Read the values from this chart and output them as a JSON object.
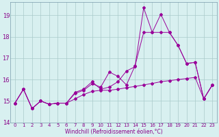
{
  "xlabel": "Windchill (Refroidissement éolien,°C)",
  "bg_color": "#d8f0f0",
  "line_color": "#990099",
  "grid_color": "#aacaca",
  "xlim": [
    -0.5,
    23.5
  ],
  "ylim": [
    14.0,
    19.6
  ],
  "yticks": [
    14,
    15,
    16,
    17,
    18,
    19
  ],
  "xticks": [
    0,
    1,
    2,
    3,
    4,
    5,
    6,
    7,
    8,
    9,
    10,
    11,
    12,
    13,
    14,
    15,
    16,
    17,
    18,
    19,
    20,
    21,
    22,
    23
  ],
  "s1_x": [
    0,
    1,
    2,
    3,
    4,
    5,
    6,
    7,
    8,
    9,
    10,
    11,
    12,
    13,
    14,
    15,
    16,
    17,
    18,
    19,
    20,
    21,
    22,
    23
  ],
  "s1_y": [
    14.9,
    15.55,
    14.65,
    15.0,
    14.85,
    14.9,
    14.9,
    15.4,
    15.55,
    15.9,
    15.55,
    15.65,
    15.9,
    16.4,
    16.6,
    19.35,
    18.2,
    19.05,
    18.2,
    17.6,
    16.75,
    16.8,
    15.1,
    15.75
  ],
  "s2_x": [
    0,
    1,
    2,
    3,
    4,
    5,
    6,
    7,
    8,
    9,
    10,
    11,
    12,
    13,
    14,
    15,
    16,
    17,
    18,
    19,
    20,
    21,
    22,
    23
  ],
  "s2_y": [
    14.9,
    15.55,
    14.65,
    15.0,
    14.85,
    14.9,
    14.9,
    15.35,
    15.5,
    15.8,
    15.65,
    16.35,
    16.15,
    15.75,
    16.65,
    18.2,
    18.2,
    18.2,
    18.2,
    17.6,
    16.75,
    16.8,
    15.1,
    15.75
  ],
  "s3_x": [
    0,
    1,
    2,
    3,
    4,
    5,
    6,
    7,
    8,
    9,
    10,
    11,
    12,
    13,
    14,
    15,
    16,
    17,
    18,
    19,
    20,
    21,
    22,
    23
  ],
  "s3_y": [
    14.9,
    15.55,
    14.65,
    15.0,
    14.85,
    14.9,
    14.9,
    15.1,
    15.3,
    15.45,
    15.5,
    15.5,
    15.55,
    15.62,
    15.68,
    15.75,
    15.82,
    15.9,
    15.95,
    16.0,
    16.05,
    16.1,
    15.1,
    15.75
  ]
}
